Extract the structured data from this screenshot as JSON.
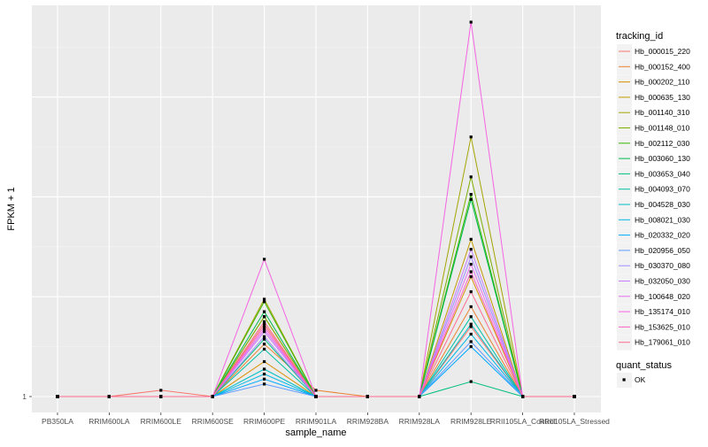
{
  "chart_data": {
    "type": "line",
    "xlabel": "sample_name",
    "ylabel": "FPKM + 1",
    "y_tick_labels": [
      "1"
    ],
    "ylim": [
      0.9,
      17.0
    ],
    "categories": [
      "PB350LA",
      "RRIM600LA",
      "RRIM600LE",
      "RRIM600SE",
      "RRIM600PE",
      "RRIM901LA",
      "RRIM928BA",
      "RRIM928LA",
      "RRIM928LE",
      "RRII105LA_Control",
      "RRII105LA_Stressed"
    ],
    "legend_title": "tracking_id",
    "legend2_title": "quant_status",
    "legend2_items": [
      {
        "label": "OK"
      }
    ],
    "series": [
      {
        "name": "Hb_000015_220",
        "color": "#F8766D",
        "values": [
          1,
          1,
          1.25,
          1,
          3.9,
          1,
          1,
          1,
          3.8,
          1,
          1
        ]
      },
      {
        "name": "Hb_000152_400",
        "color": "#EA8331",
        "values": [
          1,
          1,
          1,
          1,
          3.1,
          1.25,
          1,
          1,
          4.6,
          1,
          1
        ]
      },
      {
        "name": "Hb_000202_110",
        "color": "#D89000",
        "values": [
          1,
          1,
          1,
          1,
          2.4,
          1,
          1,
          1,
          5.8,
          1,
          1
        ]
      },
      {
        "name": "Hb_000635_130",
        "color": "#C09B00",
        "values": [
          1,
          1,
          1,
          1,
          4.2,
          1,
          1,
          1,
          7.3,
          1,
          1
        ]
      },
      {
        "name": "Hb_001140_310",
        "color": "#A3A500",
        "values": [
          1,
          1,
          1,
          1,
          4.9,
          1,
          1,
          1,
          11.4,
          1,
          1
        ]
      },
      {
        "name": "Hb_001148_010",
        "color": "#7CAE00",
        "values": [
          1,
          1,
          1,
          1,
          4.2,
          1,
          1,
          1,
          9.8,
          1,
          1
        ]
      },
      {
        "name": "Hb_002112_030",
        "color": "#39B600",
        "values": [
          1,
          1,
          1,
          1,
          4.8,
          1,
          1,
          1,
          9.1,
          1,
          1
        ]
      },
      {
        "name": "Hb_003060_130",
        "color": "#00BB4E",
        "values": [
          1,
          1,
          1,
          1,
          4.4,
          1,
          1,
          1,
          8.9,
          1,
          1
        ]
      },
      {
        "name": "Hb_003653_040",
        "color": "#00BF7D",
        "values": [
          1,
          1,
          1,
          1,
          3.3,
          1,
          1,
          1,
          1.6,
          1,
          1
        ]
      },
      {
        "name": "Hb_004093_070",
        "color": "#00C1A3",
        "values": [
          1,
          1,
          1,
          1,
          2.9,
          1,
          1,
          1,
          4.2,
          1,
          1
        ]
      },
      {
        "name": "Hb_004528_030",
        "color": "#00BFC4",
        "values": [
          1,
          1,
          1,
          1,
          2.1,
          1,
          1,
          1,
          3.9,
          1,
          1
        ]
      },
      {
        "name": "Hb_008021_030",
        "color": "#00B8E7",
        "values": [
          1,
          1,
          1,
          1,
          1.9,
          1,
          1,
          1,
          3.5,
          1,
          1
        ]
      },
      {
        "name": "Hb_020332_020",
        "color": "#00A9FF",
        "values": [
          1,
          1,
          1,
          1,
          1.7,
          1,
          1,
          1,
          3.0,
          1,
          1
        ]
      },
      {
        "name": "Hb_020956_050",
        "color": "#619CFF",
        "values": [
          1,
          1,
          1,
          1,
          1.5,
          1,
          1,
          1,
          3.2,
          1,
          1
        ]
      },
      {
        "name": "Hb_030370_080",
        "color": "#9F8CFF",
        "values": [
          1,
          1,
          1,
          1,
          3.4,
          1,
          1,
          1,
          6.6,
          1,
          1
        ]
      },
      {
        "name": "Hb_032050_030",
        "color": "#C77CFF",
        "values": [
          1,
          1,
          1,
          1,
          3.6,
          1,
          1,
          1,
          6.9,
          1,
          1
        ]
      },
      {
        "name": "Hb_100648_020",
        "color": "#E76BF3",
        "values": [
          1,
          1,
          1,
          1,
          3.7,
          1,
          1,
          1,
          6.3,
          1,
          1
        ]
      },
      {
        "name": "Hb_135174_010",
        "color": "#F564E3",
        "values": [
          1,
          1,
          1,
          1,
          6.5,
          1,
          1,
          1,
          16.0,
          1,
          1
        ]
      },
      {
        "name": "Hb_153625_010",
        "color": "#FF61C3",
        "values": [
          1,
          1,
          1,
          1,
          3.8,
          1,
          1,
          1,
          6.0,
          1,
          1
        ]
      },
      {
        "name": "Hb_179061_010",
        "color": "#FF6C91",
        "values": [
          1,
          1,
          1,
          1,
          4.0,
          1,
          1,
          1,
          5.2,
          1,
          1
        ]
      }
    ]
  }
}
